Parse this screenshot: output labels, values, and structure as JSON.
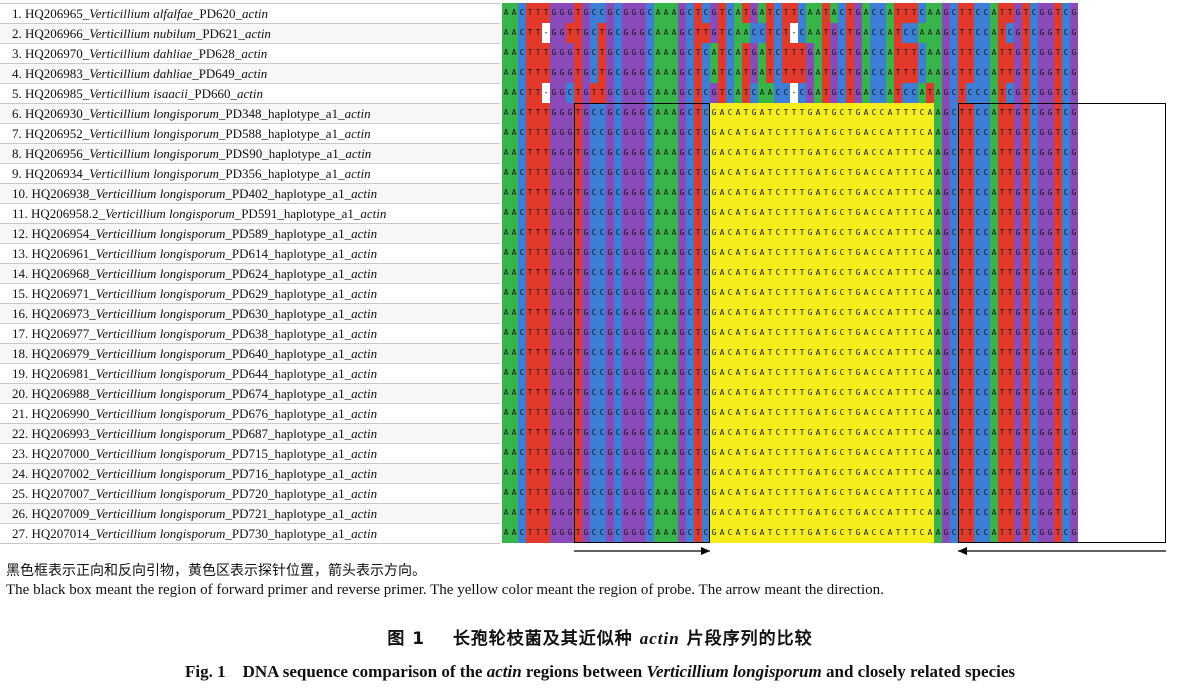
{
  "figure": {
    "rows": [
      {
        "num": "1.",
        "acc": "HQ206965",
        "species": "Verticillium alfalfae",
        "mid": "_PD620_",
        "gene": "actin",
        "seq": "AACTTTGGGTGCCGCGGGCAAAGCTCGTCATGATCTTCAATACTGACCATTTCAAGCTTCCATTGTCGGTCG"
      },
      {
        "num": "2.",
        "acc": "HQ206966",
        "species": "Verticillium nubilum",
        "mid": "_PD621_",
        "gene": "actin",
        "seq": "AACTT-GGTTGCTGCGGGCAAAGCTTGTCAACCTCT-CAATGCTGACCATCCAAAGCTTCCATCGTCGGTCG"
      },
      {
        "num": "3.",
        "acc": "HQ206970",
        "species": "Verticillium dahliae",
        "mid": "_PD628_",
        "gene": "actin",
        "seq": "AACTTTGGGTGCTGCGGGCAAAGCTCATCATGATCTTTGATGCTGACCATTTCAAGCTTCCATTGTCGGTCG"
      },
      {
        "num": "4.",
        "acc": "HQ206983",
        "species": "Verticillium dahliae",
        "mid": "_PD649_",
        "gene": "actin",
        "seq": "AACTTTGGGTGCTGCGGGCAAAGCTCATCATGATCTTTGATGCTGACCATTTCAAGCTTCCATTGTCGGTCG"
      },
      {
        "num": "5.",
        "acc": "HQ206985",
        "species": "Verticillium isaacii",
        "mid": "_PD660_",
        "gene": "actin",
        "seq": "AACTT-GGCTGTTGCGGGCAAAGCTCGTCATCAACC-CGATGCTGACCATCCATAGCTCCCATCGTCGGTCG"
      },
      {
        "num": "6.",
        "acc": "HQ206930",
        "species": "Verticillium longisporum",
        "mid": "_PD348_haplotype_a1_",
        "gene": "actin",
        "seq": "AACTTTGGGTGCCGCGGGCAAAGCTCGACATGATCTTTGATGCTGACCATTTCAAGCTTCCATTGTCGGTCG"
      },
      {
        "num": "7.",
        "acc": "HQ206952",
        "species": "Verticillium longisporum",
        "mid": "_PD588_haplotype_a1_",
        "gene": "actin",
        "seq": "AACTTTGGGTGCCGCGGGCAAAGCTCGACATGATCTTTGATGCTGACCATTTCAAGCTTCCATTGTCGGTCG"
      },
      {
        "num": "8.",
        "acc": "HQ206956",
        "species": "Verticillium longisporum",
        "mid": "_PDS90_haplotype_a1_",
        "gene": "actin",
        "seq": "AACTTTGGGTGCCGCGGGCAAAGCTCGACATGATCTTTGATGCTGACCATTTCAAGCTTCCATTGTCGGTCG"
      },
      {
        "num": "9.",
        "acc": "HQ206934",
        "species": "Verticillium longisporum",
        "mid": "_PD356_haplotype_a1_",
        "gene": "actin",
        "seq": "AACTTTGGGTGCCGCGGGCAAAGCTCGACATGATCTTTGATGCTGACCATTTCAAGCTTCCATTGTCGGTCG"
      },
      {
        "num": "10.",
        "acc": "HQ206938",
        "species": "Verticillium longisporum",
        "mid": "_PD402_haplotype_a1_",
        "gene": "actin",
        "seq": "AACTTTGGGTGCCGCGGGCAAAGCTCGACATGATCTTTGATGCTGACCATTTCAAGCTTCCATTGTCGGTCG"
      },
      {
        "num": "11.",
        "acc": "HQ206958.2",
        "species": "Verticillium longisporum",
        "mid": "_PD591_haplotype_a1_",
        "gene": "actin",
        "seq": "AACTTTGGGTGCCGCGGGCAAAGCTCGACATGATCTTTGATGCTGACCATTTCAAGCTTCCATTGTCGGTCG"
      },
      {
        "num": "12.",
        "acc": "HQ206954",
        "species": "Verticillium longisporum",
        "mid": "_PD589_haplotype_a1_",
        "gene": "actin",
        "seq": "AACTTTGGGTGCCGCGGGCAAAGCTCGACATGATCTTTGATGCTGACCATTTCAAGCTTCCATTGTCGGTCG"
      },
      {
        "num": "13.",
        "acc": "HQ206961",
        "species": "Verticillium longisporum",
        "mid": "_PD614_haplotype_a1_",
        "gene": "actin",
        "seq": "AACTTTGGGTGCCGCGGGCAAAGCTCGACATGATCTTTGATGCTGACCATTTCAAGCTTCCATTGTCGGTCG"
      },
      {
        "num": "14.",
        "acc": "HQ206968",
        "species": "Verticillium longisporum",
        "mid": "_PD624_haplotype_a1_",
        "gene": "actin",
        "seq": "AACTTTGGGTGCCGCGGGCAAAGCTCGACATGATCTTTGATGCTGACCATTTCAAGCTTCCATTGTCGGTCG"
      },
      {
        "num": "15.",
        "acc": "HQ206971",
        "species": "Verticillium longisporum",
        "mid": "_PD629_haplotype_a1_",
        "gene": "actin",
        "seq": "AACTTTGGGTGCCGCGGGCAAAGCTCGACATGATCTTTGATGCTGACCATTTCAAGCTTCCATTGTCGGTCG"
      },
      {
        "num": "16.",
        "acc": "HQ206973",
        "species": "Verticillium longisporum",
        "mid": "_PD630_haplotype_a1_",
        "gene": "actin",
        "seq": "AACTTTGGGTGCCGCGGGCAAAGCTCGACATGATCTTTGATGCTGACCATTTCAAGCTTCCATTGTCGGTCG"
      },
      {
        "num": "17.",
        "acc": "HQ206977",
        "species": "Verticillium longisporum",
        "mid": "_PD638_haplotype_a1_",
        "gene": "actin",
        "seq": "AACTTTGGGTGCCGCGGGCAAAGCTCGACATGATCTTTGATGCTGACCATTTCAAGCTTCCATTGTCGGTCG"
      },
      {
        "num": "18.",
        "acc": "HQ206979",
        "species": "Verticillium longisporum",
        "mid": "_PD640_haplotype_a1_",
        "gene": "actin",
        "seq": "AACTTTGGGTGCCGCGGGCAAAGCTCGACATGATCTTTGATGCTGACCATTTCAAGCTTCCATTGTCGGTCG"
      },
      {
        "num": "19.",
        "acc": "HQ206981",
        "species": "Verticillium longisporum",
        "mid": "_PD644_haplotype_a1_",
        "gene": "actin",
        "seq": "AACTTTGGGTGCCGCGGGCAAAGCTCGACATGATCTTTGATGCTGACCATTTCAAGCTTCCATTGTCGGTCG"
      },
      {
        "num": "20.",
        "acc": "HQ206988",
        "species": "Verticillium longisporum",
        "mid": "_PD674_haplotype_a1_",
        "gene": "actin",
        "seq": "AACTTTGGGTGCCGCGGGCAAAGCTCGACATGATCTTTGATGCTGACCATTTCAAGCTTCCATTGTCGGTCG"
      },
      {
        "num": "21.",
        "acc": "HQ206990",
        "species": "Verticillium longisporum",
        "mid": "_PD676_haplotype_a1_",
        "gene": "actin",
        "seq": "AACTTTGGGTGCCGCGGGCAAAGCTCGACATGATCTTTGATGCTGACCATTTCAAGCTTCCATTGTCGGTCG"
      },
      {
        "num": "22.",
        "acc": "HQ206993",
        "species": "Verticillium longisporum",
        "mid": "_PD687_haplotype_a1_",
        "gene": "actin",
        "seq": "AACTTTGGGTGCCGCGGGCAAAGCTCGACATGATCTTTGATGCTGACCATTTCAAGCTTCCATTGTCGGTCG"
      },
      {
        "num": "23.",
        "acc": "HQ207000",
        "species": "Verticillium longisporum",
        "mid": "_PD715_haplotype_a1_",
        "gene": "actin",
        "seq": "AACTTTGGGTGCCGCGGGCAAAGCTCGACATGATCTTTGATGCTGACCATTTCAAGCTTCCATTGTCGGTCG"
      },
      {
        "num": "24.",
        "acc": "HQ207002",
        "species": "Verticillium longisporum",
        "mid": "_PD716_haplotype_a1_",
        "gene": "actin",
        "seq": "AACTTTGGGTGCCGCGGGCAAAGCTCGACATGATCTTTGATGCTGACCATTTCAAGCTTCCATTGTCGGTCG"
      },
      {
        "num": "25.",
        "acc": "HQ207007",
        "species": "Verticillium longisporum",
        "mid": "_PD720_haplotype_a1_",
        "gene": "actin",
        "seq": "AACTTTGGGTGCCGCGGGCAAAGCTCGACATGATCTTTGATGCTGACCATTTCAAGCTTCCATTGTCGGTCG"
      },
      {
        "num": "26.",
        "acc": "HQ207009",
        "species": "Verticillium longisporum",
        "mid": "_PD721_haplotype_a1_",
        "gene": "actin",
        "seq": "AACTTTGGGTGCCGCGGGCAAAGCTCGACATGATCTTTGATGCTGACCATTTCAAGCTTCCATTGTCGGTCG"
      },
      {
        "num": "27.",
        "acc": "HQ207014",
        "species": "Verticillium longisporum",
        "mid": "_PD730_haplotype_a1_",
        "gene": "actin",
        "seq": "AACTTTGGGTGCCGCGGGCAAAGCTCGACATGATCTTTGATGCTGACCATTTCAAGCTTCCATTGTCGGTCG"
      }
    ],
    "base_colors": {
      "A": "#38b54a",
      "C": "#3d7fd6",
      "G": "#8a4ab8",
      "T": "#e2392b",
      "probe": "#f5ee1c"
    },
    "forward_primer_columns": [
      9,
      25
    ],
    "probe_columns": [
      26,
      53
    ],
    "reverse_primer_columns": [
      57,
      82
    ],
    "legend_cn": "黑色框表示正向和反向引物，黄色区表示探针位置，箭头表示方向。",
    "legend_en": "The black box meant the region of forward primer and reverse primer. The yellow color meant the region of probe. The arrow meant the direction."
  },
  "caption": {
    "label_cn": "图 1",
    "text_cn_a": "长孢轮枝菌及其近似种",
    "gene": "actin",
    "text_cn_b": "片段序列的比较",
    "label_en": "Fig. 1",
    "text_en_a": "DNA sequence comparison of the",
    "text_en_b": "regions between",
    "species_en": "Verticillium longisporum",
    "text_en_c": "and closely related species"
  }
}
